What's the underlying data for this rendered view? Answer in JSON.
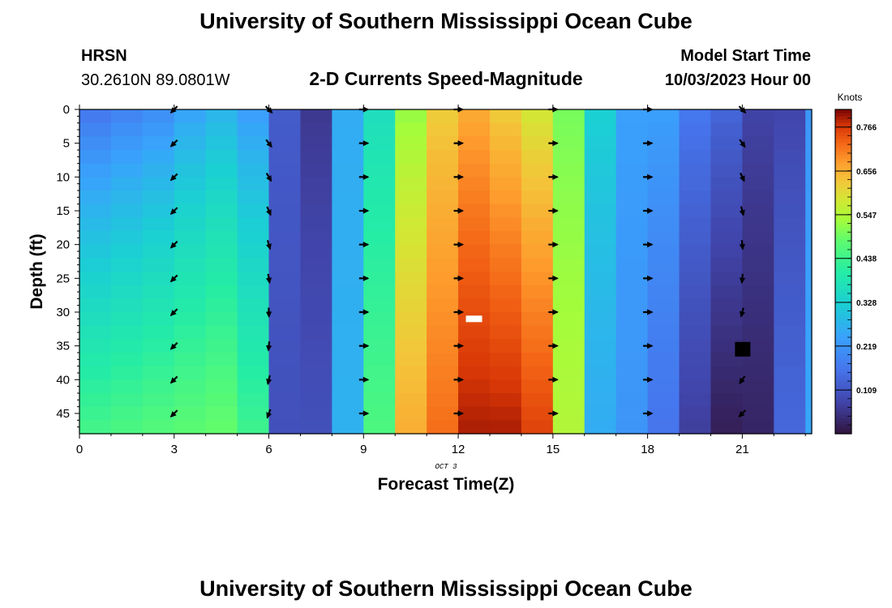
{
  "page": {
    "title": "University of Southern Mississippi Ocean Cube",
    "footer_title": "University of Southern Mississippi Ocean Cube"
  },
  "header": {
    "station_name": "HRSN",
    "station_coords": "30.2610N  89.0801W",
    "chart_title": "2-D Currents Speed-Magnitude",
    "model_start_label": "Model Start Time",
    "model_start_value": "10/03/2023 Hour 00"
  },
  "chart_data": {
    "type": "heatmap",
    "title": "2-D Currents Speed-Magnitude",
    "xlabel": "Forecast Time(Z)",
    "ylabel": "Depth (ft)",
    "date_label": "OCT 3",
    "xlim": [
      0,
      23.2
    ],
    "ylim": [
      48,
      0
    ],
    "x_ticks": [
      0,
      3,
      6,
      9,
      12,
      15,
      18,
      21
    ],
    "y_ticks": [
      0,
      5,
      10,
      15,
      20,
      25,
      30,
      35,
      40,
      45
    ],
    "colorbar": {
      "unit": "Knots",
      "min": 0.0,
      "max": 0.81,
      "tick_values": [
        0.766,
        0.656,
        0.547,
        0.438,
        0.328,
        0.219,
        0.109
      ],
      "tick_labels": [
        "0.766",
        "0.656",
        "0.547",
        "0.438",
        "0.328",
        "0.219",
        "0.109"
      ]
    },
    "hourly_speed_surface_knots": [
      0.16,
      0.18,
      0.2,
      0.24,
      0.27,
      0.23,
      0.12,
      0.06,
      0.26,
      0.36,
      0.52,
      0.62,
      0.66,
      0.62,
      0.58,
      0.5,
      0.33,
      0.24,
      0.24,
      0.17,
      0.14,
      0.08,
      0.08,
      0.22
    ],
    "hourly_speed_bottom_knots": [
      0.45,
      0.46,
      0.47,
      0.48,
      0.49,
      0.44,
      0.1,
      0.1,
      0.27,
      0.46,
      0.66,
      0.72,
      0.79,
      0.79,
      0.76,
      0.55,
      0.26,
      0.22,
      0.16,
      0.07,
      0.02,
      0.03,
      0.14,
      0.25
    ],
    "vectors": {
      "times": [
        3,
        6,
        9,
        12,
        15,
        18,
        21
      ],
      "depths": [
        0,
        5,
        10,
        15,
        20,
        25,
        30,
        35,
        40,
        45
      ],
      "direction_deg_by_time": [
        225,
        135,
        90,
        90,
        90,
        90,
        135
      ],
      "direction_deg_by_time_bottom": [
        225,
        200,
        90,
        90,
        90,
        90,
        225
      ]
    },
    "annotations": [
      {
        "kind": "white-box",
        "time": 12.5,
        "depth": 31
      },
      {
        "kind": "black-box",
        "time": 21.0,
        "depth": 35.5
      }
    ]
  }
}
